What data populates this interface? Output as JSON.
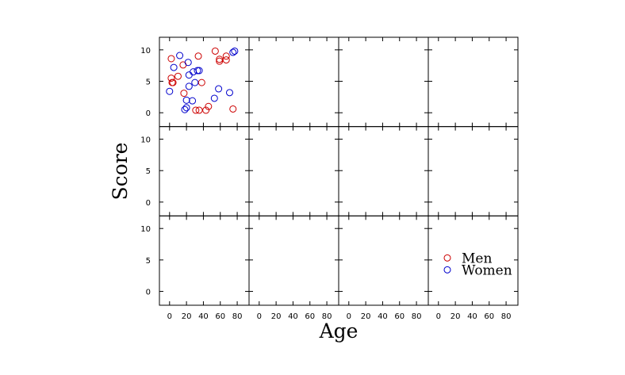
{
  "chart_data": {
    "type": "scatter",
    "layout": {
      "rows": 3,
      "cols": 4,
      "active_panel": 0
    },
    "xlabel": "Age",
    "ylabel": "Score",
    "xlim": [
      -12,
      94
    ],
    "ylim": [
      -2.2,
      12
    ],
    "xticks": [
      0,
      20,
      40,
      60,
      80
    ],
    "yticks": [
      0,
      5,
      10
    ],
    "legend": {
      "placement": "bottom-right"
    },
    "series": [
      {
        "name": "Men",
        "color": "#cc0000",
        "marker": "open-circle",
        "x": [
          2,
          2,
          3,
          4,
          10,
          16,
          17,
          31,
          34,
          35,
          38,
          43,
          46,
          54,
          59,
          59,
          67,
          67,
          75
        ],
        "y": [
          8.6,
          5.5,
          4.8,
          4.8,
          5.8,
          7.6,
          3.1,
          0.4,
          9.0,
          0.4,
          4.8,
          0.4,
          1.0,
          9.8,
          8.5,
          8.2,
          9.0,
          8.4,
          0.6
        ]
      },
      {
        "name": "Women",
        "color": "#0000cc",
        "marker": "open-circle",
        "x": [
          0,
          5,
          12,
          18,
          20,
          20,
          22,
          23,
          23,
          27,
          28,
          30,
          33,
          35,
          53,
          58,
          71,
          75,
          77
        ],
        "y": [
          3.4,
          7.2,
          9.1,
          0.5,
          0.8,
          2.0,
          8.0,
          4.2,
          6.0,
          1.9,
          6.5,
          4.8,
          6.7,
          6.7,
          2.3,
          3.8,
          3.2,
          9.6,
          9.8
        ]
      }
    ]
  }
}
